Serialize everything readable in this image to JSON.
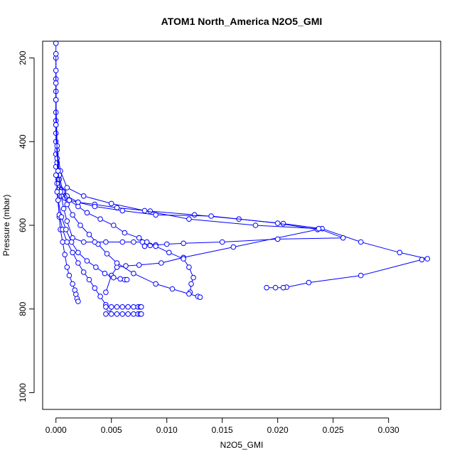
{
  "chart_data": {
    "type": "line",
    "title": "ATOM1 North_America N2O5_GMI",
    "xlabel": "N2O5_GMI",
    "ylabel": "Pressure (mbar)",
    "xlim": [
      -0.0012,
      0.0347
    ],
    "ylim": [
      1040,
      160
    ],
    "y_reversed": true,
    "x_ticks": [
      0.0,
      0.005,
      0.01,
      0.015,
      0.02,
      0.025,
      0.03
    ],
    "x_tick_labels": [
      "0.000",
      "0.005",
      "0.010",
      "0.015",
      "0.020",
      "0.025",
      "0.030"
    ],
    "y_ticks": [
      200,
      400,
      600,
      800,
      1000
    ],
    "y_tick_labels": [
      "200",
      "400",
      "600",
      "800",
      "1000"
    ],
    "grid": false,
    "marker": "open-circle",
    "color": "#0000ff",
    "series": [
      {
        "x": [
          0.0,
          0.0,
          0.0,
          0.0,
          0.0,
          0.0,
          0.0,
          0.0,
          0.0001,
          0.0001,
          0.0002,
          0.0003,
          0.0005,
          0.0008,
          0.0012,
          0.002,
          0.0035,
          0.0055,
          0.0085,
          0.0125,
          0.0165,
          0.0205,
          0.024,
          0.0275,
          0.031,
          0.0335,
          0.033,
          0.0275,
          0.0228,
          0.0208,
          0.0205,
          0.0198,
          0.019
        ],
        "y": [
          165,
          200,
          250,
          300,
          350,
          400,
          430,
          460,
          480,
          500,
          515,
          525,
          530,
          535,
          540,
          545,
          550,
          558,
          566,
          575,
          585,
          596,
          608,
          640,
          665,
          680,
          682,
          720,
          737,
          748,
          749,
          749,
          749
        ]
      },
      {
        "x": [
          0.0,
          0.0,
          0.0,
          0.0001,
          0.0002,
          0.0005,
          0.001,
          0.002,
          0.0035,
          0.006,
          0.009,
          0.014,
          0.02,
          0.0236,
          0.016,
          0.0115,
          0.0095,
          0.0075,
          0.0063,
          0.0055,
          0.005,
          0.0045
        ],
        "y": [
          190,
          280,
          380,
          450,
          490,
          515,
          530,
          545,
          555,
          565,
          575,
          578,
          595,
          610,
          652,
          677,
          690,
          695,
          697,
          700,
          720,
          760
        ]
      },
      {
        "x": [
          0.0,
          0.0,
          0.0001,
          0.0004,
          0.001,
          0.0025,
          0.005,
          0.008,
          0.012,
          0.018,
          0.0237,
          0.0259,
          0.02,
          0.015,
          0.0115,
          0.01,
          0.009,
          0.0085,
          0.008
        ],
        "y": [
          230,
          330,
          420,
          470,
          510,
          530,
          548,
          565,
          585,
          600,
          608,
          630,
          633,
          640,
          643,
          645,
          647,
          648,
          650
        ]
      },
      {
        "x": [
          0.0,
          0.0,
          0.0001,
          0.0003,
          0.0007,
          0.0012,
          0.002,
          0.0028,
          0.004,
          0.0052,
          0.0062,
          0.0075,
          0.0082,
          0.009,
          0.0102,
          0.0115,
          0.012,
          0.0124,
          0.0122,
          0.0121
        ],
        "y": [
          260,
          360,
          440,
          490,
          520,
          540,
          555,
          570,
          585,
          600,
          618,
          630,
          640,
          650,
          665,
          680,
          700,
          725,
          740,
          760
        ]
      },
      {
        "x": [
          0.0,
          0.0001,
          0.0003,
          0.0006,
          0.001,
          0.0015,
          0.0022,
          0.003,
          0.0038,
          0.0046,
          0.0055,
          0.007,
          0.009,
          0.0105,
          0.012,
          0.0128,
          0.013
        ],
        "y": [
          300,
          410,
          480,
          520,
          550,
          575,
          600,
          622,
          645,
          668,
          690,
          715,
          740,
          752,
          764,
          770,
          772
        ]
      },
      {
        "x": [
          0.0,
          0.0002,
          0.0004,
          0.0007,
          0.001,
          0.0015,
          0.0025,
          0.0035,
          0.0045,
          0.006,
          0.007,
          0.0078
        ],
        "y": [
          360,
          470,
          520,
          560,
          590,
          630,
          640,
          640,
          640,
          640,
          640,
          640
        ]
      },
      {
        "x": [
          0.0,
          0.0002,
          0.0003,
          0.0004,
          0.0006,
          0.0008,
          0.001,
          0.0012,
          0.0015,
          0.0017,
          0.0018,
          0.0019,
          0.002
        ],
        "y": [
          480,
          540,
          580,
          610,
          640,
          670,
          700,
          720,
          740,
          755,
          765,
          775,
          782
        ]
      },
      {
        "x": [
          0.0001,
          0.0003,
          0.0006,
          0.001,
          0.0015,
          0.002,
          0.0025,
          0.003,
          0.0035,
          0.004,
          0.0045,
          0.0048
        ],
        "y": [
          520,
          575,
          610,
          640,
          665,
          690,
          712,
          730,
          750,
          770,
          790,
          800
        ]
      },
      {
        "x": [
          0.0002,
          0.0005,
          0.0009,
          0.0014,
          0.002,
          0.0028,
          0.0036,
          0.0044,
          0.0052,
          0.0058,
          0.0062,
          0.0064
        ],
        "y": [
          540,
          580,
          610,
          640,
          665,
          685,
          700,
          715,
          725,
          728,
          730,
          730
        ]
      },
      {
        "x": [
          0.0045,
          0.005,
          0.0055,
          0.006,
          0.0065,
          0.007,
          0.0074,
          0.0076,
          0.0077
        ],
        "y": [
          795,
          795,
          795,
          795,
          795,
          795,
          795,
          795,
          795
        ]
      },
      {
        "x": [
          0.0045,
          0.005,
          0.0055,
          0.006,
          0.0065,
          0.007,
          0.0074,
          0.0076,
          0.0077
        ],
        "y": [
          812,
          812,
          812,
          812,
          812,
          812,
          812,
          812,
          812
        ]
      }
    ]
  }
}
